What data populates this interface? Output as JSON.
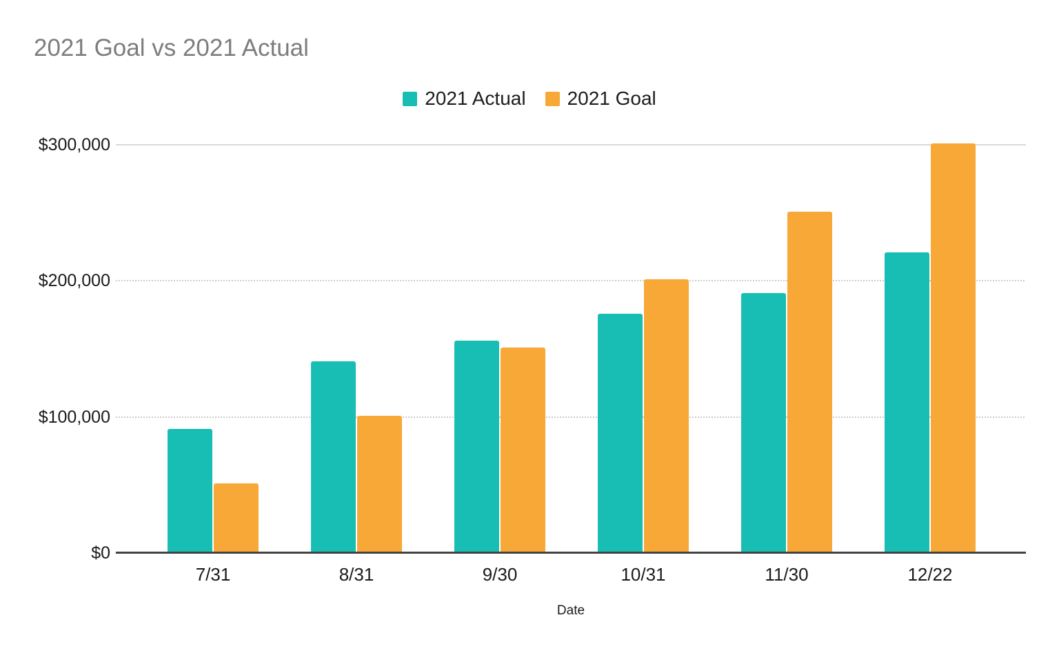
{
  "chart": {
    "title": "2021 Goal vs 2021 Actual"
  },
  "chart_data": {
    "type": "bar",
    "title": "2021 Goal vs 2021 Actual",
    "categories": [
      "7/31",
      "8/31",
      "9/30",
      "10/31",
      "11/30",
      "12/22"
    ],
    "series": [
      {
        "name": "2021 Actual",
        "color": "#18beb4",
        "values": [
          90000,
          140000,
          155000,
          175000,
          190000,
          220000
        ]
      },
      {
        "name": "2021 Goal",
        "color": "#f8a836",
        "values": [
          50000,
          100000,
          150000,
          200000,
          250000,
          300000
        ]
      }
    ],
    "xlabel": "Date",
    "ylabel": "",
    "ylim": [
      0,
      300000
    ],
    "yticks": [
      {
        "value": 0,
        "label": "$0"
      },
      {
        "value": 100000,
        "label": "$100,000"
      },
      {
        "value": 200000,
        "label": "$200,000"
      },
      {
        "value": 300000,
        "label": "$300,000"
      }
    ],
    "legend_position": "top",
    "grid": true
  }
}
